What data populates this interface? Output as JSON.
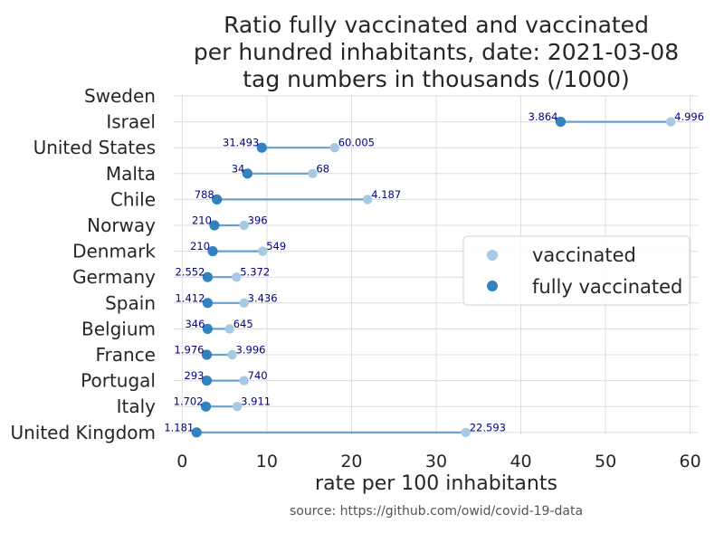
{
  "chart_data": {
    "type": "dumbbell",
    "title_lines": [
      "Ratio fully vaccinated and vaccinated",
      "per hundred inhabitants, date: 2021-03-08",
      "tag numbers in thousands (/1000)"
    ],
    "xlabel": "rate per 100 inhabitants",
    "source": "source: https://github.com/owid/covid-19-data",
    "xlim": [
      -1,
      61
    ],
    "xticks": [
      0,
      10,
      20,
      30,
      40,
      50,
      60
    ],
    "grid": true,
    "legend_position": "center-right",
    "colors": {
      "vaccinated": "#a6cae3",
      "fully_vaccinated": "#3182bd",
      "line": "#6a9fcc",
      "tag": "#000080",
      "grid": "#dcdcdc"
    },
    "series": [
      {
        "name": "vaccinated",
        "key": "vaccinated"
      },
      {
        "name": "fully vaccinated",
        "key": "fully"
      }
    ],
    "countries": [
      {
        "name": "Sweden"
      },
      {
        "name": "Israel",
        "vaccinated": 57.7,
        "fully": 44.7,
        "vaccinated_tag": "4.996",
        "fully_tag": "3.864"
      },
      {
        "name": "United States",
        "vaccinated": 18.0,
        "fully": 9.4,
        "vaccinated_tag": "60.005",
        "fully_tag": "31.493"
      },
      {
        "name": "Malta",
        "vaccinated": 15.4,
        "fully": 7.7,
        "vaccinated_tag": "68",
        "fully_tag": "34"
      },
      {
        "name": "Chile",
        "vaccinated": 21.9,
        "fully": 4.1,
        "vaccinated_tag": "4.187",
        "fully_tag": "788"
      },
      {
        "name": "Norway",
        "vaccinated": 7.3,
        "fully": 3.8,
        "vaccinated_tag": "396",
        "fully_tag": "210"
      },
      {
        "name": "Denmark",
        "vaccinated": 9.5,
        "fully": 3.6,
        "vaccinated_tag": "549",
        "fully_tag": "210"
      },
      {
        "name": "Germany",
        "vaccinated": 6.4,
        "fully": 3.0,
        "vaccinated_tag": "5.372",
        "fully_tag": "2.552"
      },
      {
        "name": "Spain",
        "vaccinated": 7.3,
        "fully": 3.0,
        "vaccinated_tag": "3.436",
        "fully_tag": "1.412"
      },
      {
        "name": "Belgium",
        "vaccinated": 5.6,
        "fully": 3.0,
        "vaccinated_tag": "645",
        "fully_tag": "346"
      },
      {
        "name": "France",
        "vaccinated": 5.9,
        "fully": 2.9,
        "vaccinated_tag": "3.996",
        "fully_tag": "1.976"
      },
      {
        "name": "Portugal",
        "vaccinated": 7.3,
        "fully": 2.9,
        "vaccinated_tag": "740",
        "fully_tag": "293"
      },
      {
        "name": "Italy",
        "vaccinated": 6.5,
        "fully": 2.8,
        "vaccinated_tag": "3.911",
        "fully_tag": "1.702"
      },
      {
        "name": "United Kingdom",
        "vaccinated": 33.5,
        "fully": 1.7,
        "vaccinated_tag": "22.593",
        "fully_tag": "1.181"
      }
    ]
  }
}
